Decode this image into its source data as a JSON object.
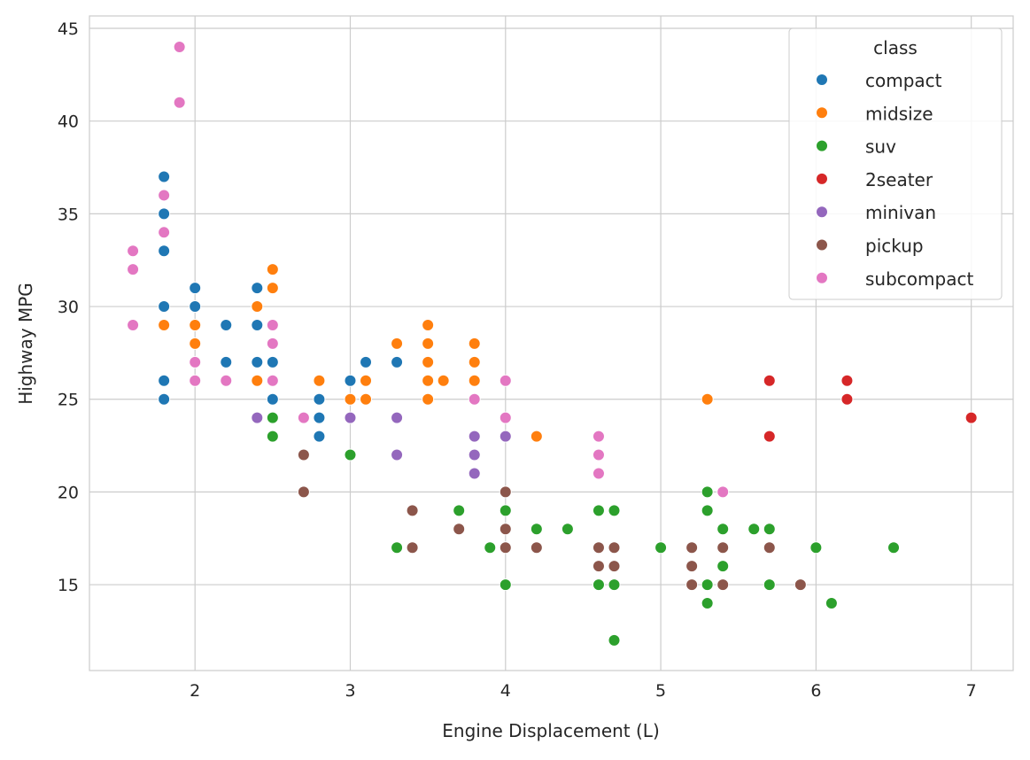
{
  "chart_data": {
    "type": "scatter",
    "title": "",
    "xlabel": "Engine Displacement (L)",
    "ylabel": "Highway MPG",
    "xlim": [
      1.32,
      7.27
    ],
    "ylim": [
      10.37,
      45.67
    ],
    "xticks": [
      2,
      3,
      4,
      5,
      6,
      7
    ],
    "yticks": [
      15,
      20,
      25,
      30,
      35,
      40,
      45
    ],
    "grid": true,
    "legend": {
      "title": "class",
      "placement": "top-right"
    },
    "series": [
      {
        "name": "compact",
        "color": "#1f77b4",
        "points": [
          [
            1.8,
            37
          ],
          [
            1.8,
            35
          ],
          [
            1.8,
            33
          ],
          [
            1.8,
            30
          ],
          [
            1.8,
            26
          ],
          [
            1.8,
            25
          ],
          [
            2.0,
            31
          ],
          [
            2.0,
            30
          ],
          [
            2.2,
            29
          ],
          [
            2.2,
            27
          ],
          [
            2.4,
            31
          ],
          [
            2.4,
            29
          ],
          [
            2.4,
            27
          ],
          [
            2.5,
            27
          ],
          [
            2.5,
            26
          ],
          [
            2.5,
            25
          ],
          [
            2.8,
            25
          ],
          [
            2.8,
            24
          ],
          [
            2.8,
            23
          ],
          [
            3.0,
            26
          ],
          [
            3.1,
            27
          ],
          [
            3.3,
            27
          ]
        ]
      },
      {
        "name": "midsize",
        "color": "#ff7f0e",
        "points": [
          [
            1.8,
            29
          ],
          [
            2.0,
            29
          ],
          [
            2.0,
            28
          ],
          [
            2.4,
            30
          ],
          [
            2.4,
            26
          ],
          [
            2.5,
            32
          ],
          [
            2.5,
            31
          ],
          [
            2.8,
            26
          ],
          [
            3.0,
            25
          ],
          [
            3.1,
            26
          ],
          [
            3.1,
            25
          ],
          [
            3.3,
            28
          ],
          [
            3.5,
            29
          ],
          [
            3.5,
            28
          ],
          [
            3.5,
            27
          ],
          [
            3.5,
            26
          ],
          [
            3.5,
            25
          ],
          [
            3.6,
            26
          ],
          [
            3.8,
            28
          ],
          [
            3.8,
            27
          ],
          [
            3.8,
            26
          ],
          [
            4.2,
            23
          ],
          [
            5.3,
            25
          ]
        ]
      },
      {
        "name": "suv",
        "color": "#2ca02c",
        "points": [
          [
            2.5,
            24
          ],
          [
            2.5,
            23
          ],
          [
            3.0,
            22
          ],
          [
            3.3,
            17
          ],
          [
            3.7,
            19
          ],
          [
            3.9,
            17
          ],
          [
            4.0,
            19
          ],
          [
            4.0,
            17
          ],
          [
            4.0,
            15
          ],
          [
            4.2,
            18
          ],
          [
            4.4,
            18
          ],
          [
            4.6,
            19
          ],
          [
            4.6,
            15
          ],
          [
            4.7,
            19
          ],
          [
            4.7,
            17
          ],
          [
            4.7,
            15
          ],
          [
            4.7,
            12
          ],
          [
            5.0,
            17
          ],
          [
            5.3,
            20
          ],
          [
            5.3,
            19
          ],
          [
            5.3,
            15
          ],
          [
            5.3,
            14
          ],
          [
            5.4,
            18
          ],
          [
            5.4,
            17
          ],
          [
            5.4,
            16
          ],
          [
            5.6,
            18
          ],
          [
            5.7,
            18
          ],
          [
            5.7,
            15
          ],
          [
            6.0,
            17
          ],
          [
            6.1,
            14
          ],
          [
            6.5,
            17
          ]
        ]
      },
      {
        "name": "2seater",
        "color": "#d62728",
        "points": [
          [
            5.7,
            26
          ],
          [
            5.7,
            23
          ],
          [
            6.2,
            26
          ],
          [
            6.2,
            25
          ],
          [
            7.0,
            24
          ]
        ]
      },
      {
        "name": "minivan",
        "color": "#9467bd",
        "points": [
          [
            2.4,
            24
          ],
          [
            3.0,
            24
          ],
          [
            3.3,
            24
          ],
          [
            3.3,
            22
          ],
          [
            3.8,
            23
          ],
          [
            3.8,
            22
          ],
          [
            3.8,
            21
          ],
          [
            4.0,
            23
          ]
        ]
      },
      {
        "name": "pickup",
        "color": "#8c564b",
        "points": [
          [
            2.7,
            22
          ],
          [
            2.7,
            20
          ],
          [
            3.4,
            19
          ],
          [
            3.4,
            17
          ],
          [
            3.7,
            18
          ],
          [
            4.0,
            20
          ],
          [
            4.0,
            18
          ],
          [
            4.0,
            17
          ],
          [
            4.2,
            17
          ],
          [
            4.6,
            17
          ],
          [
            4.6,
            16
          ],
          [
            4.7,
            17
          ],
          [
            4.7,
            16
          ],
          [
            5.2,
            17
          ],
          [
            5.2,
            16
          ],
          [
            5.2,
            15
          ],
          [
            5.4,
            17
          ],
          [
            5.4,
            15
          ],
          [
            5.7,
            17
          ],
          [
            5.9,
            15
          ]
        ]
      },
      {
        "name": "subcompact",
        "color": "#e377c2",
        "points": [
          [
            1.6,
            33
          ],
          [
            1.6,
            32
          ],
          [
            1.6,
            29
          ],
          [
            1.8,
            36
          ],
          [
            1.8,
            34
          ],
          [
            1.9,
            44
          ],
          [
            1.9,
            41
          ],
          [
            2.0,
            27
          ],
          [
            2.0,
            26
          ],
          [
            2.2,
            26
          ],
          [
            2.5,
            29
          ],
          [
            2.5,
            28
          ],
          [
            2.5,
            26
          ],
          [
            2.7,
            24
          ],
          [
            3.8,
            25
          ],
          [
            4.0,
            26
          ],
          [
            4.0,
            24
          ],
          [
            4.6,
            23
          ],
          [
            4.6,
            22
          ],
          [
            4.6,
            21
          ],
          [
            5.4,
            20
          ]
        ]
      }
    ]
  }
}
